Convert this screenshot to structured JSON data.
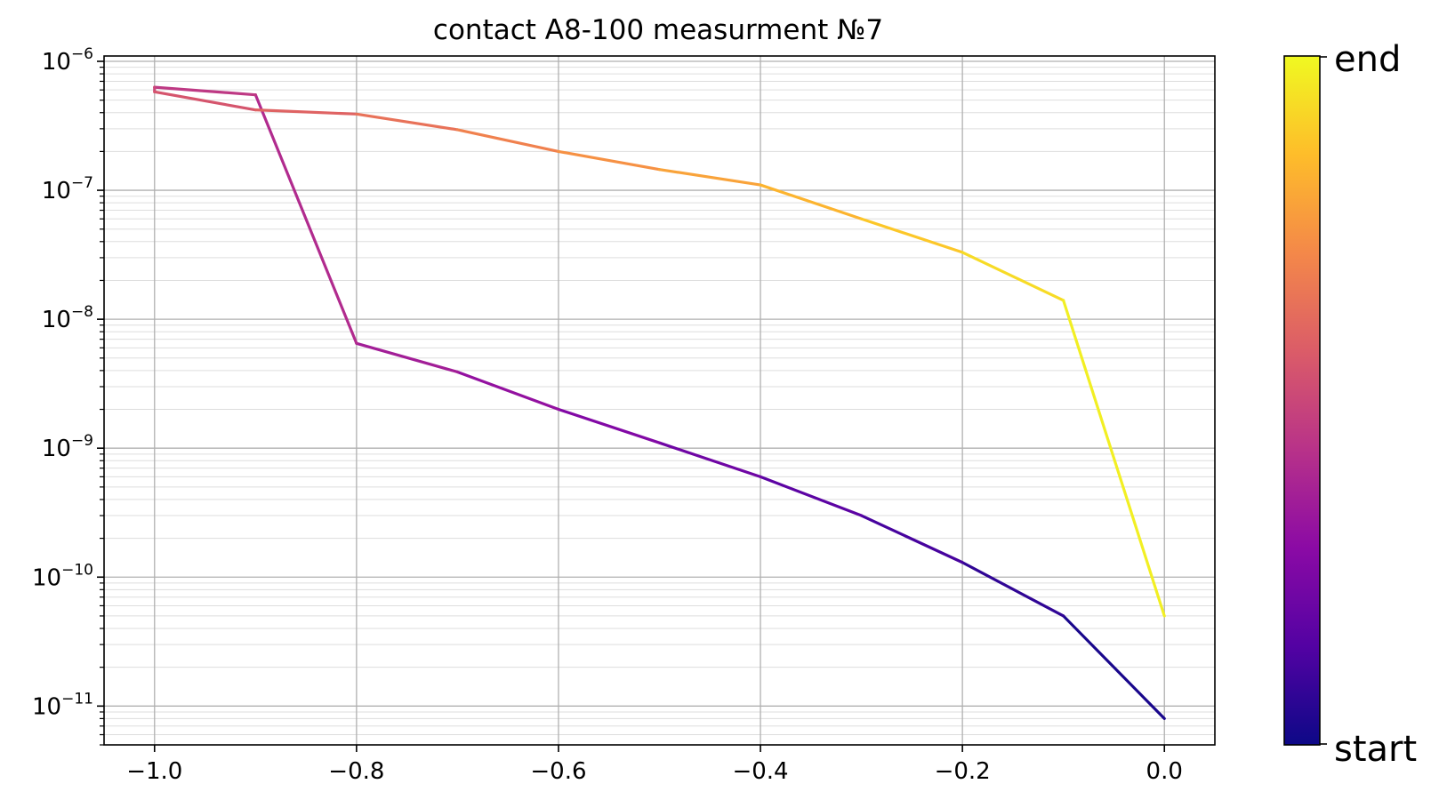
{
  "chart_data": {
    "type": "line",
    "title": "contact A8-100 measurment №7",
    "xlabel": "",
    "ylabel": "",
    "xlim": [
      -1.05,
      0.05
    ],
    "ylim": [
      5e-12,
      1.1e-06
    ],
    "yscale": "log",
    "grid": true,
    "x_ticks": [
      {
        "value": -1.0,
        "label": "−1.0"
      },
      {
        "value": -0.8,
        "label": "−0.8"
      },
      {
        "value": -0.6,
        "label": "−0.6"
      },
      {
        "value": -0.4,
        "label": "−0.4"
      },
      {
        "value": -0.2,
        "label": "−0.2"
      },
      {
        "value": 0.0,
        "label": "0.0"
      }
    ],
    "y_ticks": [
      {
        "value": 1e-11,
        "base": "10",
        "exp": "−11"
      },
      {
        "value": 1e-10,
        "base": "10",
        "exp": "−10"
      },
      {
        "value": 1e-09,
        "base": "10",
        "exp": "−9"
      },
      {
        "value": 1e-08,
        "base": "10",
        "exp": "−8"
      },
      {
        "value": 1e-07,
        "base": "10",
        "exp": "−7"
      },
      {
        "value": 1e-06,
        "base": "10",
        "exp": "−6"
      }
    ],
    "colormap": "plasma",
    "colormap_stops": [
      "#0d0887",
      "#5302a3",
      "#8b0aa5",
      "#b83289",
      "#db5c68",
      "#f48849",
      "#febd2a",
      "#f0f921"
    ],
    "colorbar": {
      "start_label": "start",
      "end_label": "end"
    },
    "points": [
      {
        "x": 0.0,
        "y": 8e-12
      },
      {
        "x": -0.1,
        "y": 5e-11
      },
      {
        "x": -0.2,
        "y": 1.3e-10
      },
      {
        "x": -0.3,
        "y": 3e-10
      },
      {
        "x": -0.4,
        "y": 6e-10
      },
      {
        "x": -0.5,
        "y": 1.1e-09
      },
      {
        "x": -0.6,
        "y": 2e-09
      },
      {
        "x": -0.7,
        "y": 3.9e-09
      },
      {
        "x": -0.8,
        "y": 6.5e-09
      },
      {
        "x": -0.9,
        "y": 5.5e-07
      },
      {
        "x": -1.0,
        "y": 6.3e-07
      },
      {
        "x": -1.0,
        "y": 5.8e-07
      },
      {
        "x": -0.9,
        "y": 4.2e-07
      },
      {
        "x": -0.8,
        "y": 3.9e-07
      },
      {
        "x": -0.7,
        "y": 2.95e-07
      },
      {
        "x": -0.6,
        "y": 2e-07
      },
      {
        "x": -0.5,
        "y": 1.45e-07
      },
      {
        "x": -0.4,
        "y": 1.1e-07
      },
      {
        "x": -0.3,
        "y": 6e-08
      },
      {
        "x": -0.2,
        "y": 3.3e-08
      },
      {
        "x": -0.1,
        "y": 1.4e-08
      },
      {
        "x": 0.0,
        "y": 5e-11
      }
    ]
  }
}
